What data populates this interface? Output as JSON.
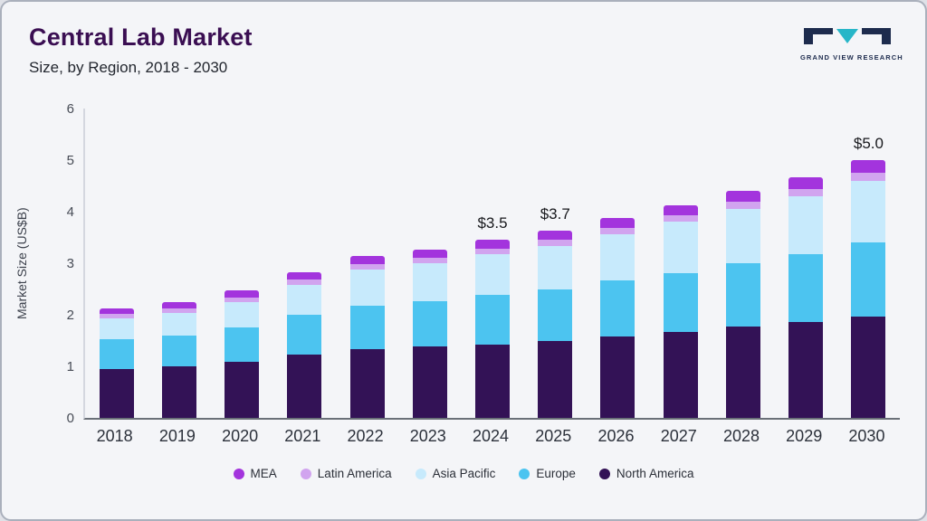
{
  "header": {
    "title": "Central Lab Market",
    "subtitle": "Size, by Region, 2018 - 2030"
  },
  "logo": {
    "name": "grand-view-research-logo",
    "text": "GRAND VIEW RESEARCH",
    "dark_color": "#1d2b4d",
    "teal_color": "#27b6c8"
  },
  "chart_data": {
    "type": "bar",
    "stacked": true,
    "title": "Central Lab Market Size, by Region, 2018 - 2030",
    "xlabel": "",
    "ylabel": "Market Size (US$B)",
    "ylim": [
      0,
      6
    ],
    "yticks": [
      0,
      1,
      2,
      3,
      4,
      5,
      6
    ],
    "grid": false,
    "legend_position": "bottom",
    "categories": [
      "2018",
      "2019",
      "2020",
      "2021",
      "2022",
      "2023",
      "2024",
      "2025",
      "2026",
      "2027",
      "2028",
      "2029",
      "2030"
    ],
    "series": [
      {
        "name": "North America",
        "color": "#331256",
        "values": [
          0.95,
          1.0,
          1.08,
          1.22,
          1.33,
          1.38,
          1.43,
          1.5,
          1.58,
          1.67,
          1.77,
          1.86,
          1.97
        ]
      },
      {
        "name": "Europe",
        "color": "#4cc4f0",
        "values": [
          0.58,
          0.6,
          0.68,
          0.78,
          0.85,
          0.88,
          0.95,
          1.0,
          1.08,
          1.13,
          1.23,
          1.32,
          1.43
        ]
      },
      {
        "name": "Asia Pacific",
        "color": "#c7eafc",
        "values": [
          0.4,
          0.43,
          0.48,
          0.58,
          0.7,
          0.74,
          0.79,
          0.83,
          0.91,
          1.0,
          1.05,
          1.12,
          1.2
        ]
      },
      {
        "name": "Latin America",
        "color": "#d1a4ef",
        "values": [
          0.08,
          0.09,
          0.09,
          0.1,
          0.1,
          0.11,
          0.11,
          0.12,
          0.12,
          0.13,
          0.14,
          0.14,
          0.15
        ]
      },
      {
        "name": "MEA",
        "color": "#a334dd",
        "values": [
          0.12,
          0.13,
          0.14,
          0.15,
          0.16,
          0.16,
          0.17,
          0.18,
          0.18,
          0.19,
          0.21,
          0.23,
          0.25
        ]
      }
    ],
    "legend_order": [
      "MEA",
      "Latin America",
      "Asia Pacific",
      "Europe",
      "North America"
    ],
    "annotations": {
      "2024": "$3.5",
      "2025": "$3.7",
      "2030": "$5.0"
    }
  }
}
